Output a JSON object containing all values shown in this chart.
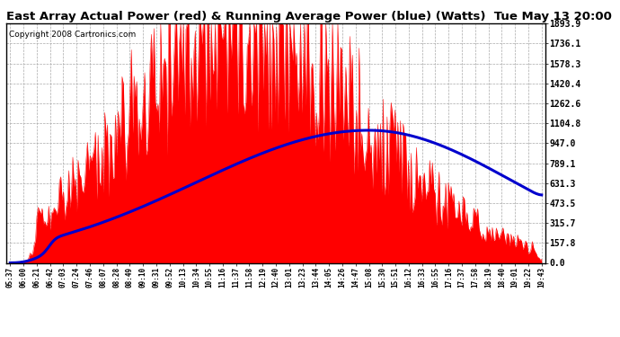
{
  "title": "East Array Actual Power (red) & Running Average Power (blue) (Watts)  Tue May 13 20:00",
  "copyright": "Copyright 2008 Cartronics.com",
  "ylabel_values": [
    0.0,
    157.8,
    315.7,
    473.5,
    631.3,
    789.1,
    947.0,
    1104.8,
    1262.6,
    1420.4,
    1578.3,
    1736.1,
    1893.9
  ],
  "ymax": 1893.9,
  "ymin": 0.0,
  "x_labels": [
    "05:37",
    "06:00",
    "06:21",
    "06:42",
    "07:03",
    "07:24",
    "07:46",
    "08:07",
    "08:28",
    "08:49",
    "09:10",
    "09:31",
    "09:52",
    "10:13",
    "10:34",
    "10:55",
    "11:16",
    "11:37",
    "11:58",
    "12:19",
    "12:40",
    "13:01",
    "13:23",
    "13:44",
    "14:05",
    "14:26",
    "14:47",
    "15:08",
    "15:30",
    "15:51",
    "16:12",
    "16:33",
    "16:55",
    "17:16",
    "17:37",
    "17:58",
    "18:19",
    "18:40",
    "19:01",
    "19:22",
    "19:43"
  ],
  "background_color": "#ffffff",
  "plot_bg_color": "#ffffff",
  "grid_color": "#aaaaaa",
  "bar_color": "#ff0000",
  "avg_line_color": "#0000cd",
  "title_color": "#000000",
  "title_fontsize": 9.5,
  "copyright_fontsize": 6.5,
  "avg_line_peak": 1050,
  "avg_line_peak_idx": 27,
  "data_peak_idx": 17,
  "n_points": 400
}
